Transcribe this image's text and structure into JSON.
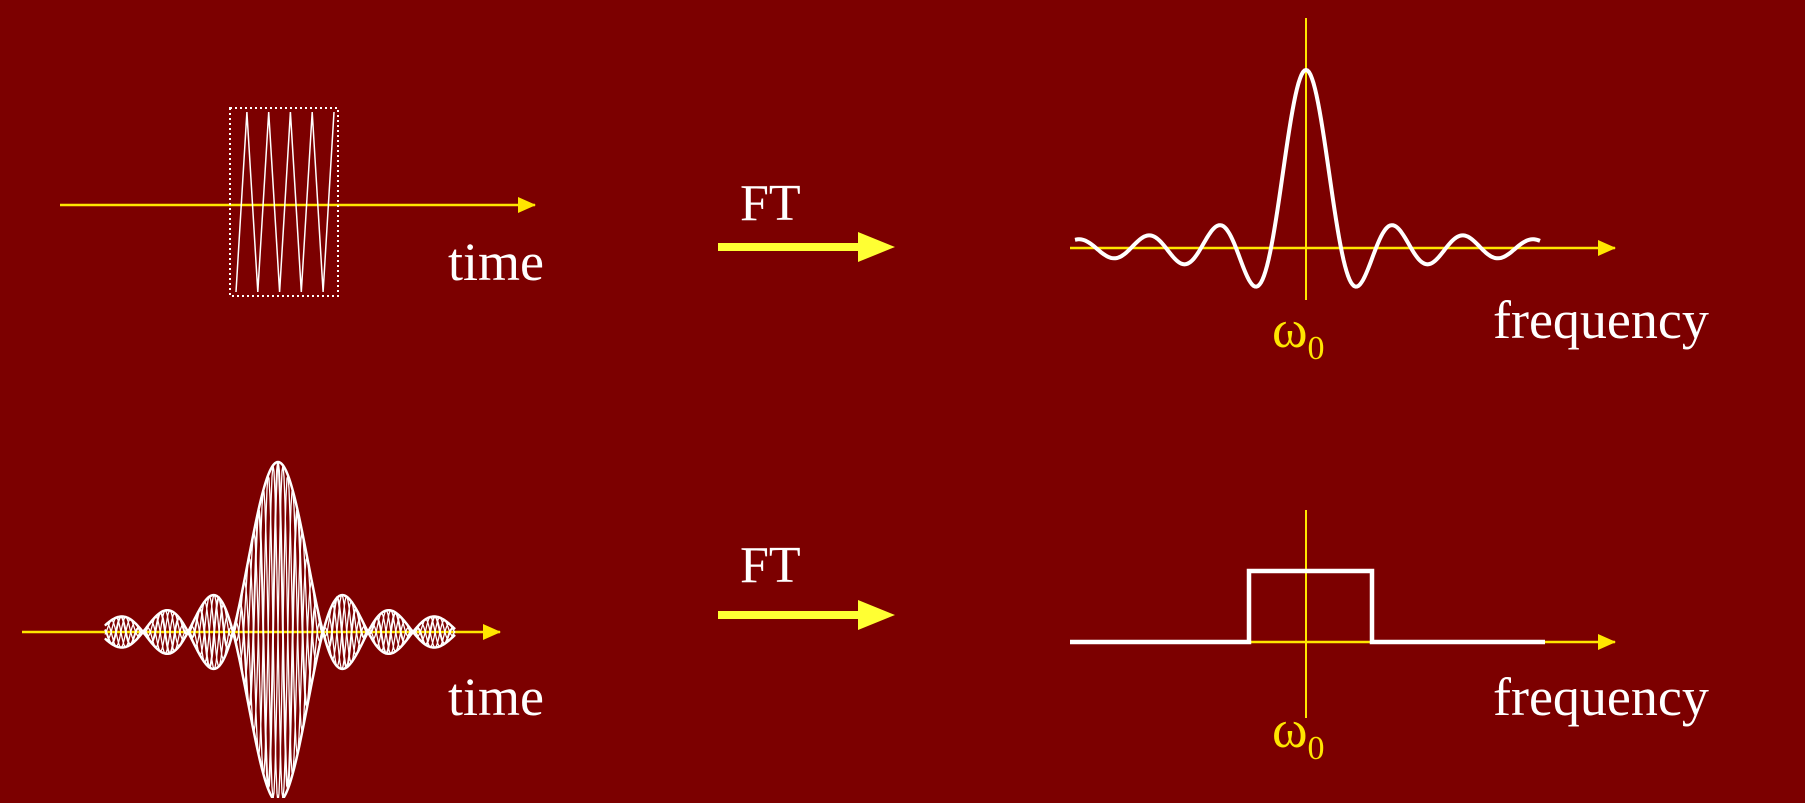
{
  "colors": {
    "background": "#7c0000",
    "axis": "#ffe600",
    "arrow": "#ffff33",
    "signal": "#ffffff",
    "text": "#ffffff",
    "omega": "#ffe600"
  },
  "top_row": {
    "time_label": "time",
    "ft_label": "FT",
    "frequency_label": "frequency",
    "center_symbol": "ω",
    "center_subscript": "0"
  },
  "bottom_row": {
    "time_label": "time",
    "ft_label": "FT",
    "frequency_label": "frequency",
    "center_symbol": "ω",
    "center_subscript": "0"
  }
}
